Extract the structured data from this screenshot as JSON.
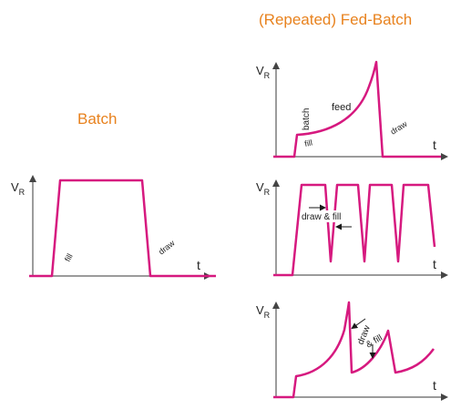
{
  "titles": {
    "batch": "Batch",
    "fed_batch": "(Repeated) Fed-Batch"
  },
  "axes": {
    "y_main": "V",
    "y_sub": "R",
    "x": "t"
  },
  "annotations": {
    "fill": "fill",
    "draw": "draw",
    "batch": "batch",
    "feed": "feed",
    "draw_and_fill": "draw & fill",
    "draw_word": "draw",
    "and_fill": "& fill"
  },
  "colors": {
    "curve": "#d6197f",
    "axis": "#7a7a7a",
    "title": "#e8821e",
    "arrow": "#1a1a1a"
  }
}
